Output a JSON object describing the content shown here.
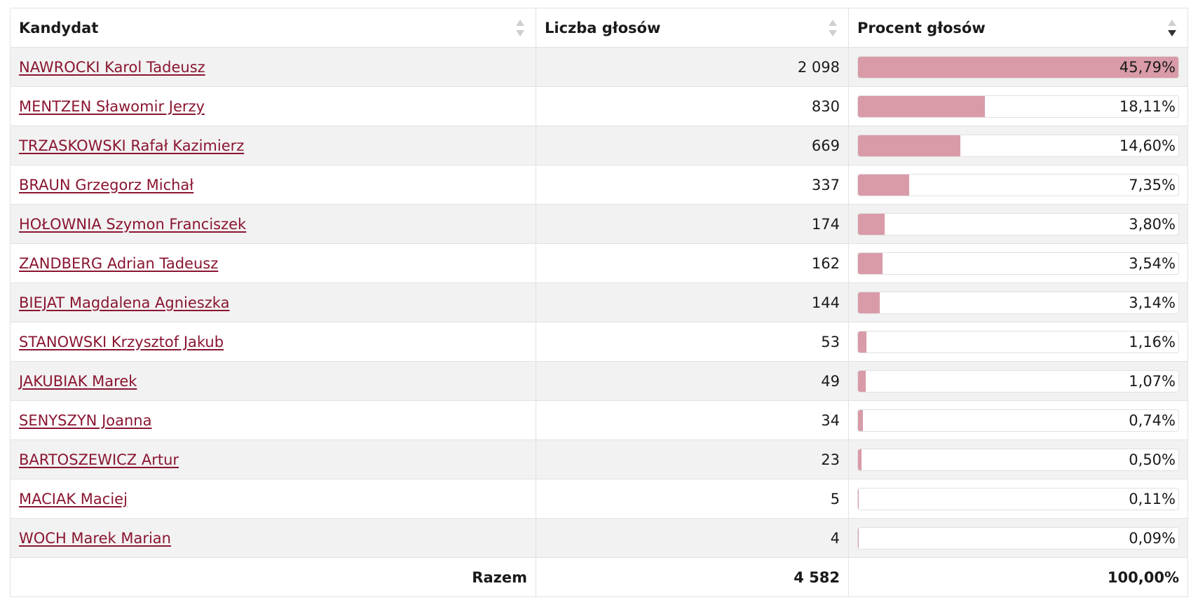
{
  "headers": {
    "candidate": "Kandydat",
    "votes": "Liczba głosów",
    "percent": "Procent głosów"
  },
  "sort": {
    "column": "percent",
    "direction": "descending"
  },
  "colors": {
    "bar_fill": "#d99ba8",
    "link": "#8a1530",
    "row_alt": "#f2f2f2"
  },
  "rows": [
    {
      "name": "NAWROCKI Karol Tadeusz",
      "votes": "2 098",
      "percent": "45,79%",
      "share": 45.79
    },
    {
      "name": "MENTZEN Sławomir Jerzy",
      "votes": "830",
      "percent": "18,11%",
      "share": 18.11
    },
    {
      "name": "TRZASKOWSKI Rafał Kazimierz",
      "votes": "669",
      "percent": "14,60%",
      "share": 14.6
    },
    {
      "name": "BRAUN Grzegorz Michał",
      "votes": "337",
      "percent": "7,35%",
      "share": 7.35
    },
    {
      "name": "HOŁOWNIA Szymon Franciszek",
      "votes": "174",
      "percent": "3,80%",
      "share": 3.8
    },
    {
      "name": "ZANDBERG Adrian Tadeusz",
      "votes": "162",
      "percent": "3,54%",
      "share": 3.54
    },
    {
      "name": "BIEJAT Magdalena Agnieszka",
      "votes": "144",
      "percent": "3,14%",
      "share": 3.14
    },
    {
      "name": "STANOWSKI Krzysztof Jakub",
      "votes": "53",
      "percent": "1,16%",
      "share": 1.16
    },
    {
      "name": "JAKUBIAK Marek",
      "votes": "49",
      "percent": "1,07%",
      "share": 1.07
    },
    {
      "name": "SENYSZYN Joanna",
      "votes": "34",
      "percent": "0,74%",
      "share": 0.74
    },
    {
      "name": "BARTOSZEWICZ Artur",
      "votes": "23",
      "percent": "0,50%",
      "share": 0.5
    },
    {
      "name": "MACIAK Maciej",
      "votes": "5",
      "percent": "0,11%",
      "share": 0.11
    },
    {
      "name": "WOCH Marek Marian",
      "votes": "4",
      "percent": "0,09%",
      "share": 0.09
    }
  ],
  "total": {
    "label": "Razem",
    "votes": "4 582",
    "percent": "100,00%"
  }
}
